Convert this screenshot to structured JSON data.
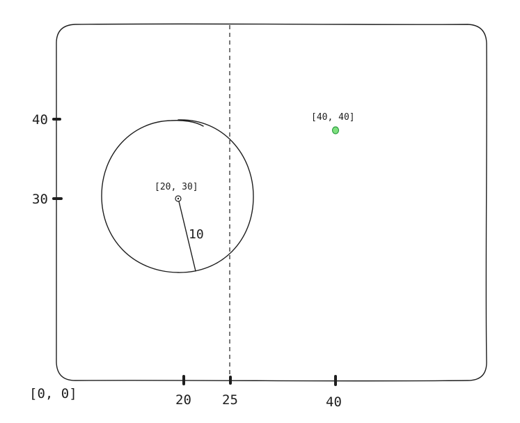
{
  "diagram": {
    "origin_label": "[0, 0]",
    "x_ticks": [
      "20",
      "25",
      "40"
    ],
    "y_ticks": [
      "40",
      "30"
    ],
    "circle": {
      "center_label": "[20, 30]",
      "radius_label": "10"
    },
    "point": {
      "label": "[40, 40]",
      "color": "#7ee07e"
    },
    "dashed_line_x": "25"
  }
}
